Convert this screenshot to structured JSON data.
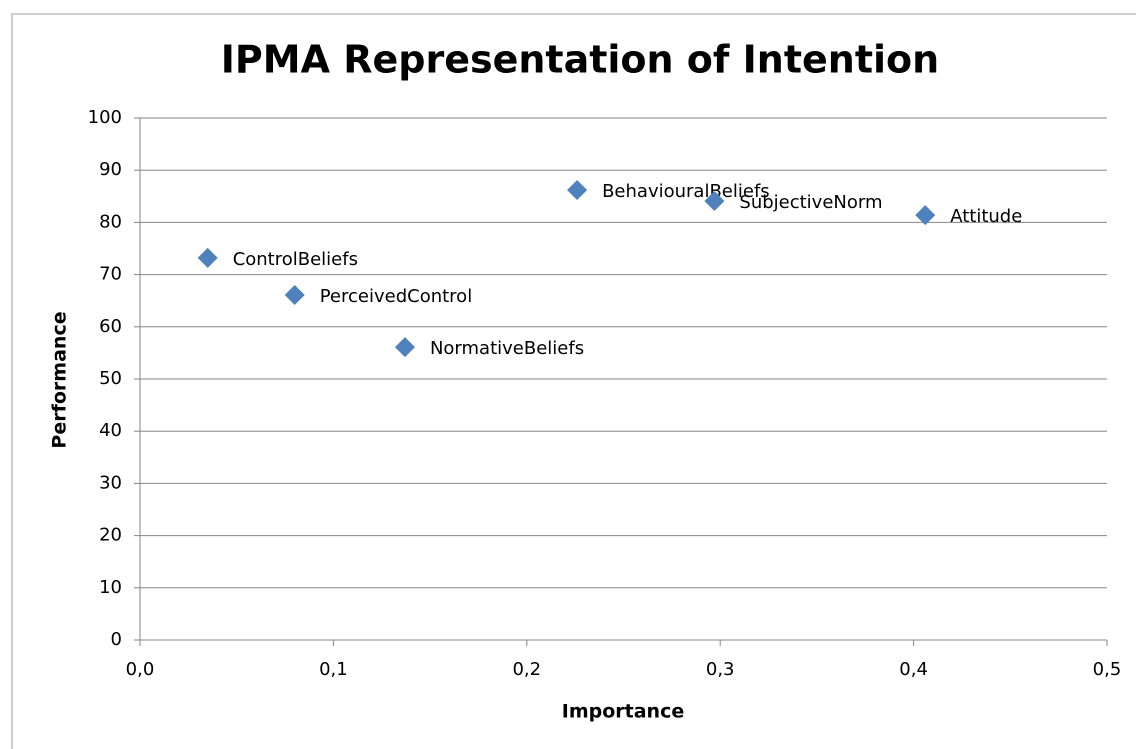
{
  "chart_data": {
    "type": "scatter",
    "title": "IPMA Representation of Intention",
    "xlabel": "Importance",
    "ylabel": "Performance",
    "labels": [
      "ControlBeliefs",
      "PerceivedControl",
      "NormativeBeliefs",
      "BehaviouralBeliefs",
      "SubjectiveNorm",
      "Attitude"
    ],
    "x": [
      0.035,
      0.08,
      0.137,
      0.226,
      0.297,
      0.406
    ],
    "values": [
      73.2,
      66.1,
      56.1,
      86.2,
      84.1,
      81.4
    ],
    "color": "#4f81bd",
    "xlim": [
      0,
      0.5
    ],
    "xticks": [
      {
        "value": 0,
        "label": "0,0"
      },
      {
        "value": 0.1,
        "label": "0,1"
      },
      {
        "value": 0.2,
        "label": "0,2"
      },
      {
        "value": 0.3,
        "label": "0,3"
      },
      {
        "value": 0.4,
        "label": "0,4"
      },
      {
        "value": 0.5,
        "label": "0,5"
      }
    ],
    "ylim": [
      0,
      100
    ],
    "yticks": [
      0,
      10,
      20,
      30,
      40,
      50,
      60,
      70,
      80,
      90,
      100
    ],
    "grid": true
  }
}
